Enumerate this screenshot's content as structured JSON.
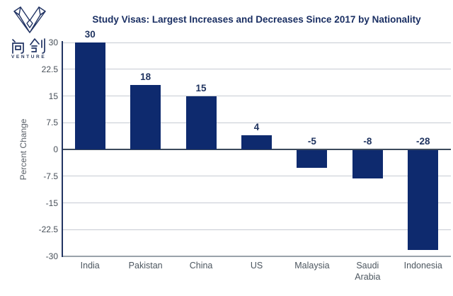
{
  "logo": {
    "chinese": "问创",
    "subtext": "VENTURE",
    "color": "#223464"
  },
  "chart_data": {
    "type": "bar",
    "title": "Study Visas: Largest Increases and Decreases Since 2017 by Nationality",
    "categories": [
      "India",
      "Pakistan",
      "China",
      "US",
      "Malaysia",
      "Saudi Arabia",
      "Indonesia"
    ],
    "values": [
      30,
      18,
      15,
      4,
      -5,
      -8,
      -28
    ],
    "data_labels": [
      "30",
      "18",
      "15",
      "4",
      "-5",
      "-8",
      "-28"
    ],
    "xlabel": "",
    "ylabel": "Percent Change",
    "ylim": [
      -30,
      30
    ],
    "yticks": [
      30,
      22.5,
      15,
      7.5,
      0,
      -7.5,
      -15,
      -22.5,
      -30
    ],
    "grid": true,
    "legend": false,
    "colors": {
      "bar": "#0E2A6E",
      "title": "#1A2F63",
      "value_label": "#1F335F",
      "gridline": "#C6CBD3",
      "zero_line": "#3C4A5C",
      "bottom_axis": "#9AA2AA",
      "y_axis": "#223562"
    }
  }
}
